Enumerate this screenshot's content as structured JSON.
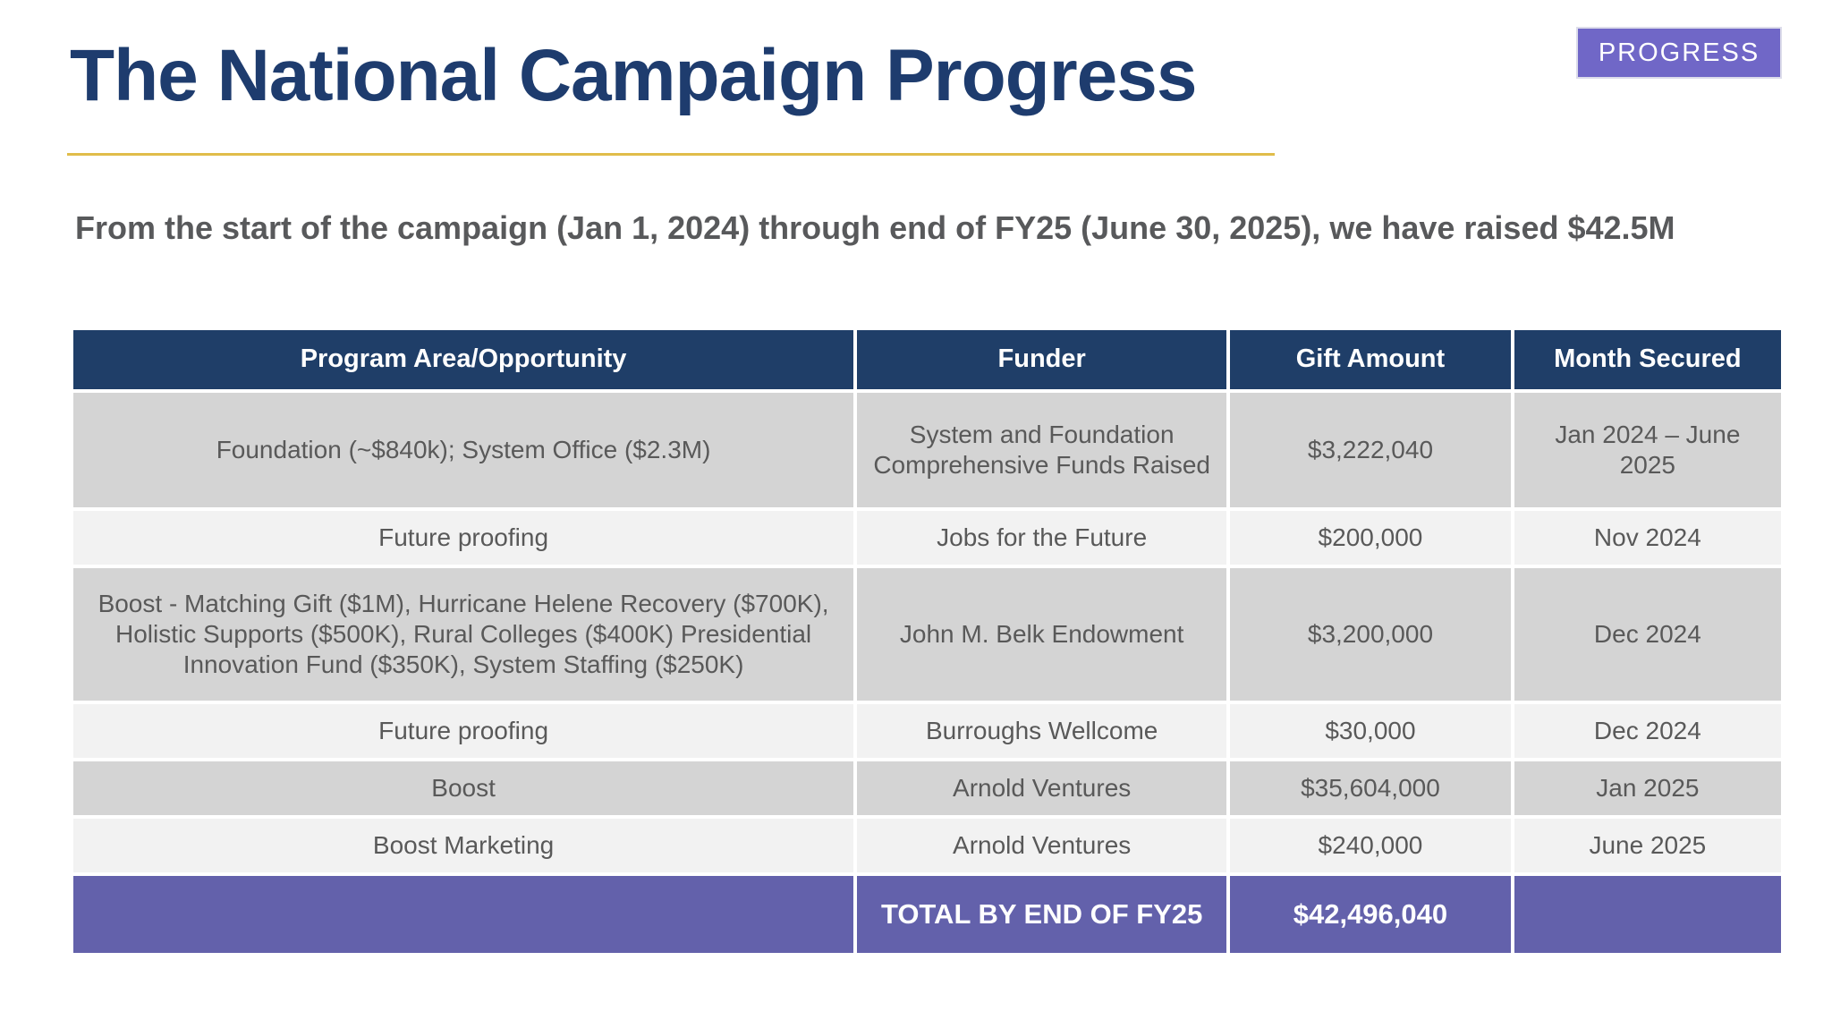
{
  "badge": {
    "label": "PROGRESS",
    "color": "#7067C7"
  },
  "title": "The National Campaign Progress",
  "subtitle": "From the start of the campaign (Jan 1, 2024) through end of FY25 (June 30, 2025), we have raised $42.5M",
  "table": {
    "columns": [
      "Program Area/Opportunity",
      "Funder",
      "Gift Amount",
      "Month Secured"
    ],
    "rows": [
      {
        "program": "Foundation (~$840k); System Office ($2.3M)",
        "funder": "System and Foundation Comprehensive Funds Raised",
        "amount": "$3,222,040",
        "month": "Jan 2024 – June 2025"
      },
      {
        "program": "Future proofing",
        "funder": "Jobs for the Future",
        "amount": "$200,000",
        "month": "Nov 2024"
      },
      {
        "program": "Boost - Matching Gift ($1M), Hurricane Helene Recovery ($700K), Holistic Supports ($500K), Rural Colleges ($400K) Presidential Innovation Fund ($350K), System Staffing  ($250K)",
        "funder": "John M. Belk Endowment",
        "amount": "$3,200,000",
        "month": "Dec 2024"
      },
      {
        "program": "Future proofing",
        "funder": "Burroughs Wellcome",
        "amount": "$30,000",
        "month": "Dec 2024"
      },
      {
        "program": "Boost",
        "funder": "Arnold Ventures",
        "amount": "$35,604,000",
        "month": "Jan 2025"
      },
      {
        "program": "Boost Marketing",
        "funder": "Arnold Ventures",
        "amount": "$240,000",
        "month": "June 2025"
      }
    ],
    "total": {
      "program": "",
      "label": "TOTAL BY END OF FY25",
      "amount": "$42,496,040",
      "month": ""
    }
  },
  "colors": {
    "header_navy": "#1F3E68",
    "title_navy": "#1E3C6E",
    "row_dark": "#D4D4D4",
    "row_light": "#F2F2F2",
    "total_purple": "#6361AB",
    "badge_purple": "#7067C7",
    "gold_rule": "#E0BD4A",
    "body_text": "#595959"
  }
}
